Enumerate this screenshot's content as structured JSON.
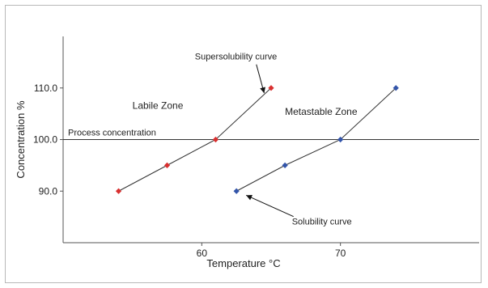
{
  "chart_data": {
    "type": "scatter",
    "xlabel": "Temperature °C",
    "ylabel": "Concentration %",
    "xlim": [
      50,
      80
    ],
    "ylim": [
      80,
      120
    ],
    "x_ticks": [
      {
        "value": 60,
        "label": "60"
      },
      {
        "value": 70,
        "label": "70"
      }
    ],
    "y_ticks": [
      {
        "value": 90,
        "label": "90.0"
      },
      {
        "value": 100,
        "label": "100.0"
      },
      {
        "value": 110,
        "label": "110.0"
      }
    ],
    "grid": false,
    "series": [
      {
        "color": "#d93030",
        "points": [
          {
            "x": 54,
            "y": 90
          },
          {
            "x": 57.5,
            "y": 95
          },
          {
            "x": 61,
            "y": 100
          },
          {
            "x": 65,
            "y": 110
          }
        ]
      },
      {
        "color": "#3355aa",
        "points": [
          {
            "x": 62.5,
            "y": 90
          },
          {
            "x": 66,
            "y": 95
          },
          {
            "x": 70,
            "y": 100
          },
          {
            "x": 74,
            "y": 110
          }
        ]
      }
    ],
    "reference_line": {
      "y": 100,
      "label": "Process concentration"
    },
    "annotations": [
      {
        "text": "Supersolubility curve",
        "x": 59.5,
        "y": 115.5,
        "arrow_to": {
          "x": 64.5,
          "y": 109
        }
      },
      {
        "text": "Solubility curve",
        "x": 66.5,
        "y": 83.5,
        "arrow_to": {
          "x": 63.2,
          "y": 89.2
        }
      },
      {
        "text": "Labile Zone",
        "x": 55,
        "y": 106
      },
      {
        "text": "Metastable Zone",
        "x": 66,
        "y": 104.8
      }
    ]
  }
}
